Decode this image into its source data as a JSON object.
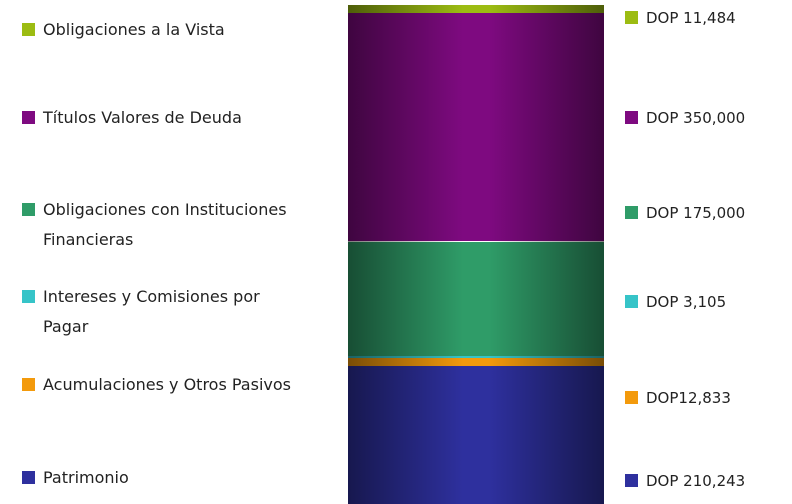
{
  "chart_data": {
    "type": "bar",
    "stacked": true,
    "series": [
      {
        "name": "Obligaciones a la Vista",
        "color": "#9cbc12",
        "values": [
          11484
        ],
        "value_labels": [
          "DOP 11,484"
        ]
      },
      {
        "name": "Títulos Valores de Deuda",
        "color": "#7e0a80",
        "values": [
          350000
        ],
        "value_labels": [
          "DOP 350,000"
        ]
      },
      {
        "name": "Obligaciones con Instituciones Financieras",
        "color": "#2f9c68",
        "values": [
          175000
        ],
        "value_labels": [
          "DOP 175,000"
        ]
      },
      {
        "name": "Intereses y Comisiones por Pagar",
        "color": "#36c4c8",
        "values": [
          3105
        ],
        "value_labels": [
          "DOP 3,105"
        ]
      },
      {
        "name": "Acumulaciones y Otros Pasivos",
        "color": "#f39a0c",
        "values": [
          12833
        ],
        "value_labels": [
          "DOP12,833"
        ]
      },
      {
        "name": "Patrimonio",
        "color": "#2e309e",
        "values": [
          210243
        ],
        "value_labels": [
          "DOP 210,243"
        ]
      }
    ]
  }
}
